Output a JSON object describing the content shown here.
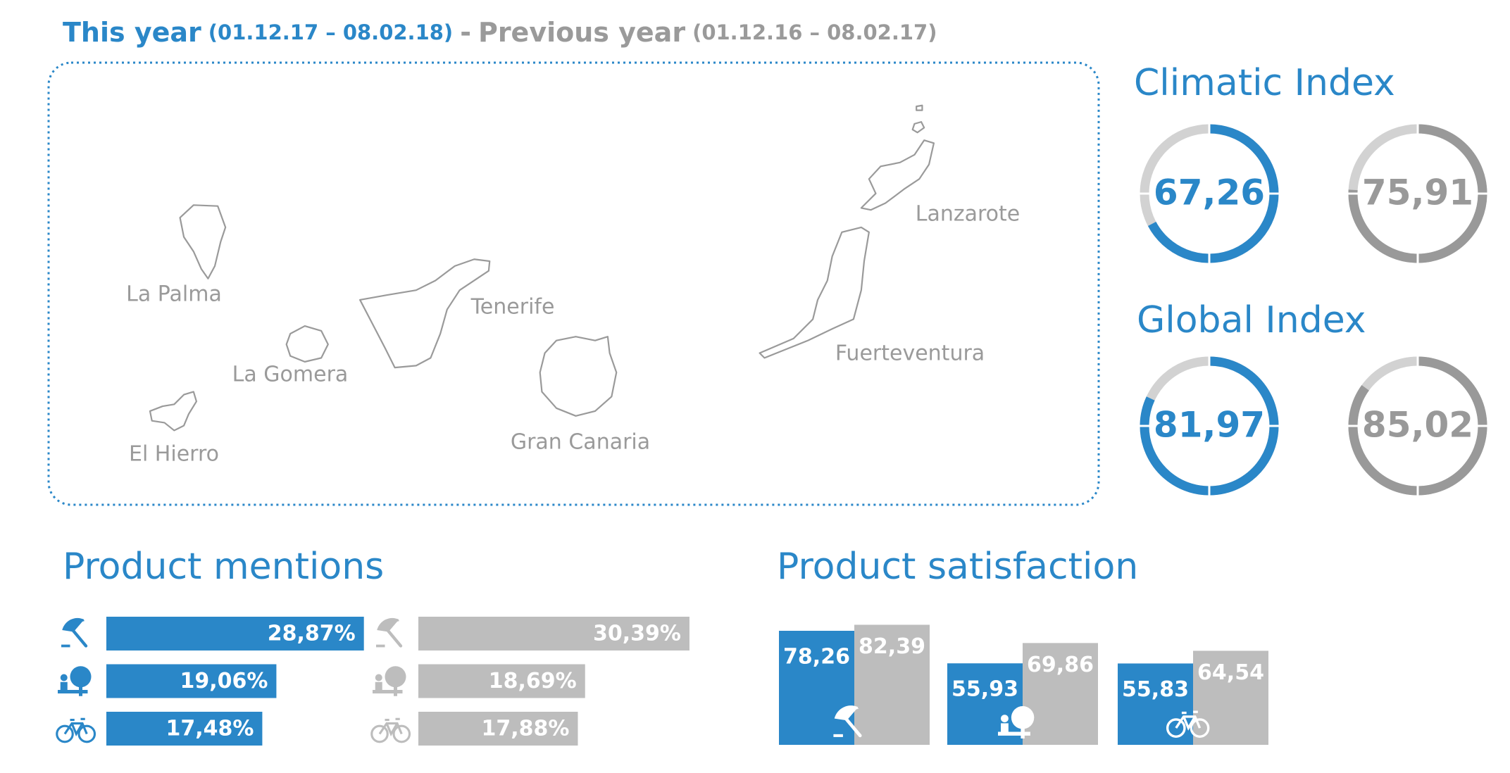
{
  "header": {
    "this_year": "This year",
    "this_range": "(01.12.17 – 08.02.18)",
    "separator": "-",
    "previous_year": "Previous year",
    "previous_range": "(01.12.16 – 08.02.17)"
  },
  "map": {
    "islands": [
      "La Palma",
      "La Gomera",
      "El Hierro",
      "Tenerife",
      "Gran Canaria",
      "Lanzarote",
      "Fuerteventura"
    ]
  },
  "chart_data": [
    {
      "type": "gauge",
      "title": "Climatic Index",
      "values": [
        67.26,
        75.91
      ],
      "value_labels": [
        "67,26",
        "75,91"
      ],
      "colors": [
        "#2a87c8",
        "#999999"
      ],
      "ylim": [
        0,
        100
      ]
    },
    {
      "type": "gauge",
      "title": "Global Index",
      "values": [
        81.97,
        85.02
      ],
      "value_labels": [
        "81,97",
        "85,02"
      ],
      "colors": [
        "#2a87c8",
        "#999999"
      ],
      "ylim": [
        0,
        100
      ]
    },
    {
      "type": "hbar",
      "title": "Product mentions",
      "categories": [
        null,
        null,
        null
      ],
      "xlim": [
        0,
        30
      ],
      "series": [
        {
          "color": "#2a87c8",
          "values": [
            28.87,
            19.06,
            17.48
          ],
          "value_labels": [
            "28,87%",
            "19,06%",
            "17,48%"
          ]
        },
        {
          "color": "#bdbdbd",
          "values": [
            30.39,
            18.69,
            17.88
          ],
          "value_labels": [
            "30,39%",
            "18,69%",
            "17,88%"
          ]
        }
      ]
    },
    {
      "type": "bar",
      "title": "Product satisfaction",
      "categories": [
        null,
        null,
        null
      ],
      "ylim": [
        0,
        100
      ],
      "series": [
        {
          "color": "#2a87c8",
          "values": [
            78.26,
            55.93,
            55.83
          ],
          "value_labels": [
            "78,26",
            "55,93",
            "55,83"
          ]
        },
        {
          "color": "#bdbdbd",
          "values": [
            82.39,
            69.86,
            64.54
          ],
          "value_labels": [
            "82,39",
            "69,86",
            "64,54"
          ]
        }
      ]
    }
  ]
}
